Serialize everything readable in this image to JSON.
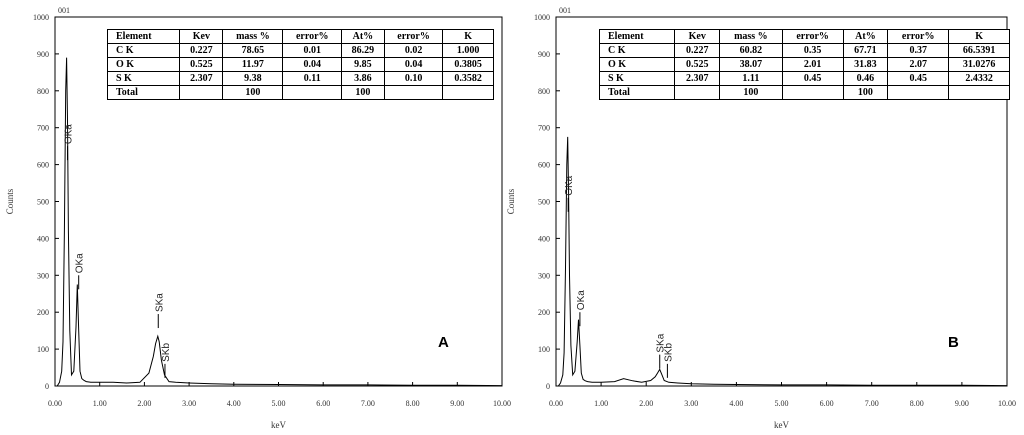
{
  "chart_data": [
    {
      "type": "line",
      "spectrum_label": "001",
      "tag": "A",
      "xlabel": "keV",
      "ylabel": "Counts",
      "xlim": [
        0,
        10
      ],
      "ylim": [
        0,
        1000
      ],
      "xticks": [
        "0.00",
        "1.00",
        "2.00",
        "3.00",
        "4.00",
        "5.00",
        "6.00",
        "7.00",
        "8.00",
        "9.00",
        "10.00"
      ],
      "yticks": [
        "0",
        "100",
        "200",
        "300",
        "400",
        "500",
        "600",
        "700",
        "800",
        "900",
        "1000"
      ],
      "series": [
        {
          "x": [
            0.05,
            0.1,
            0.15,
            0.18,
            0.21,
            0.24,
            0.26,
            0.28,
            0.3,
            0.33,
            0.37,
            0.42,
            0.47,
            0.5,
            0.53,
            0.56,
            0.6,
            0.65,
            0.7,
            0.8,
            1.0,
            1.3,
            1.6,
            1.9,
            2.1,
            2.2,
            2.25,
            2.3,
            2.33,
            2.38,
            2.45,
            2.55,
            2.7,
            3.0,
            3.5,
            4.0,
            5.0,
            6.0,
            7.0,
            8.0,
            9.0,
            10.0
          ],
          "y": [
            0,
            10,
            40,
            120,
            420,
            800,
            890,
            720,
            420,
            150,
            30,
            40,
            160,
            275,
            150,
            40,
            20,
            15,
            12,
            10,
            10,
            10,
            8,
            10,
            35,
            80,
            115,
            135,
            120,
            70,
            30,
            12,
            10,
            8,
            6,
            5,
            4,
            3,
            3,
            2,
            2,
            1
          ]
        }
      ],
      "peaks": [
        {
          "label": "OKa",
          "x": 0.28,
          "y": 650
        },
        {
          "label": "OKa",
          "x": 0.53,
          "y": 300
        },
        {
          "label": "SKa",
          "x": 2.31,
          "y": 195
        },
        {
          "label": "SKb",
          "x": 2.46,
          "y": 60
        }
      ],
      "table": {
        "headers": [
          "Element",
          "Kev",
          "mass %",
          "error%",
          "At%",
          "error%",
          "K"
        ],
        "rows": [
          [
            "C K",
            "0.227",
            "78.65",
            "0.01",
            "86.29",
            "0.02",
            "1.000"
          ],
          [
            "O K",
            "0.525",
            "11.97",
            "0.04",
            "9.85",
            "0.04",
            "0.3805"
          ],
          [
            "S K",
            "2.307",
            "9.38",
            "0.11",
            "3.86",
            "0.10",
            "0.3582"
          ],
          [
            "Total",
            "",
            "100",
            "",
            "100",
            "",
            ""
          ]
        ]
      }
    },
    {
      "type": "line",
      "spectrum_label": "001",
      "tag": "B",
      "xlabel": "keV",
      "ylabel": "Counts",
      "xlim": [
        0,
        10
      ],
      "ylim": [
        0,
        1000
      ],
      "xticks": [
        "0.00",
        "1.00",
        "2.00",
        "3.00",
        "4.00",
        "5.00",
        "6.00",
        "7.00",
        "8.00",
        "9.00",
        "10.00"
      ],
      "yticks": [
        "0",
        "100",
        "200",
        "300",
        "400",
        "500",
        "600",
        "700",
        "800",
        "900",
        "1000"
      ],
      "series": [
        {
          "x": [
            0.05,
            0.1,
            0.15,
            0.18,
            0.21,
            0.24,
            0.26,
            0.28,
            0.3,
            0.33,
            0.37,
            0.42,
            0.47,
            0.5,
            0.53,
            0.56,
            0.6,
            0.65,
            0.7,
            0.8,
            1.0,
            1.3,
            1.5,
            1.7,
            1.9,
            2.1,
            2.2,
            2.25,
            2.3,
            2.35,
            2.4,
            2.5,
            2.7,
            3.0,
            3.5,
            4.0,
            5.0,
            6.0,
            7.0,
            8.0,
            9.0,
            10.0
          ],
          "y": [
            0,
            8,
            30,
            90,
            320,
            600,
            675,
            520,
            300,
            110,
            30,
            40,
            120,
            180,
            110,
            35,
            18,
            14,
            12,
            10,
            10,
            12,
            20,
            14,
            10,
            15,
            25,
            35,
            45,
            30,
            15,
            10,
            8,
            6,
            5,
            4,
            3,
            3,
            2,
            2,
            2,
            1
          ]
        }
      ],
      "peaks": [
        {
          "label": "OKa",
          "x": 0.27,
          "y": 510
        },
        {
          "label": "OKa",
          "x": 0.53,
          "y": 200
        },
        {
          "label": "SKa",
          "x": 2.3,
          "y": 85
        },
        {
          "label": "SKb",
          "x": 2.47,
          "y": 60
        }
      ],
      "table": {
        "headers": [
          "Element",
          "Kev",
          "mass %",
          "error%",
          "At%",
          "error%",
          "K"
        ],
        "rows": [
          [
            "C K",
            "0.227",
            "60.82",
            "0.35",
            "67.71",
            "0.37",
            "66.5391"
          ],
          [
            "O K",
            "0.525",
            "38.07",
            "2.01",
            "31.83",
            "2.07",
            "31.0276"
          ],
          [
            "S K",
            "2.307",
            "1.11",
            "0.45",
            "0.46",
            "0.45",
            "2.4332"
          ],
          [
            "Total",
            "",
            "100",
            "",
            "100",
            "",
            ""
          ]
        ]
      }
    }
  ]
}
